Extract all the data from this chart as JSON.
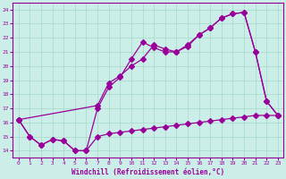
{
  "xlabel": "Windchill (Refroidissement éolien,°C)",
  "background_color": "#cceee8",
  "line_color": "#990099",
  "grid_color": "#aaddcc",
  "spine_color": "#990099",
  "xlim": [
    -0.5,
    23.5
  ],
  "ylim": [
    13.5,
    24.5
  ],
  "xticks": [
    0,
    1,
    2,
    3,
    4,
    5,
    6,
    7,
    8,
    9,
    10,
    11,
    12,
    13,
    14,
    15,
    16,
    17,
    18,
    19,
    20,
    21,
    22,
    23
  ],
  "yticks": [
    14,
    15,
    16,
    17,
    18,
    19,
    20,
    21,
    22,
    23,
    24
  ],
  "line1_x": [
    0,
    1,
    2,
    3,
    4,
    5,
    6,
    7,
    8,
    9,
    10,
    11,
    12,
    13,
    14,
    15,
    16,
    17,
    18,
    19,
    20,
    21,
    22,
    23
  ],
  "line1_y": [
    16.2,
    15.0,
    14.4,
    14.8,
    14.7,
    14.0,
    14.0,
    15.0,
    15.2,
    15.3,
    15.4,
    15.5,
    15.6,
    15.7,
    15.8,
    15.9,
    16.0,
    16.1,
    16.2,
    16.3,
    16.4,
    16.5,
    16.5,
    16.5
  ],
  "line2_x": [
    0,
    1,
    2,
    3,
    4,
    5,
    6,
    7,
    8,
    9,
    10,
    11,
    12,
    13,
    14,
    15,
    16,
    17,
    18,
    19,
    20,
    21,
    22,
    23
  ],
  "line2_y": [
    16.2,
    15.0,
    14.4,
    14.8,
    14.7,
    14.0,
    14.0,
    17.0,
    18.5,
    19.2,
    20.5,
    21.7,
    21.3,
    21.0,
    21.0,
    21.5,
    22.2,
    22.7,
    23.4,
    23.7,
    23.8,
    21.0,
    17.5,
    16.5
  ],
  "line3_x": [
    0,
    7,
    8,
    9,
    10,
    11,
    12,
    13,
    14,
    15,
    16,
    17,
    18,
    19,
    20,
    21,
    22,
    23
  ],
  "line3_y": [
    16.2,
    17.2,
    18.8,
    19.3,
    20.0,
    20.5,
    21.5,
    21.2,
    21.0,
    21.4,
    22.2,
    22.7,
    23.4,
    23.7,
    23.8,
    21.0,
    17.5,
    16.5
  ],
  "markersize": 3,
  "linewidth": 0.9
}
